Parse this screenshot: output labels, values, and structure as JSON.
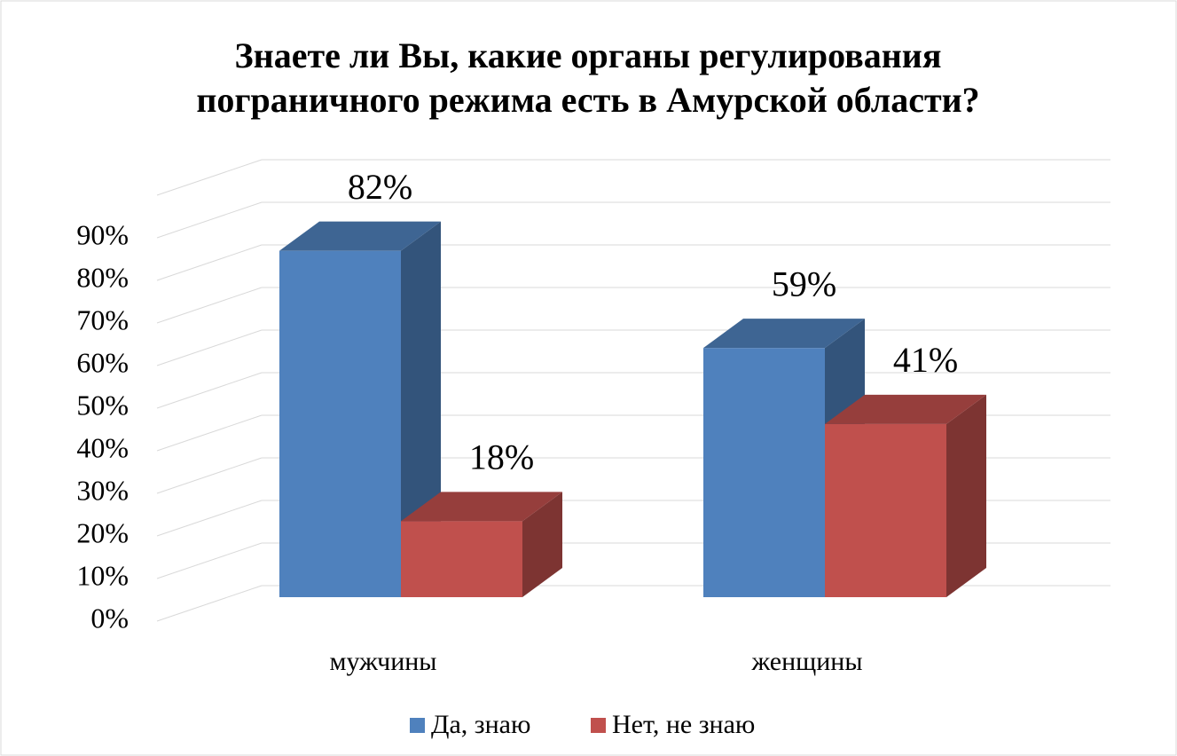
{
  "chart_data": {
    "type": "bar3d",
    "title": "Знаете ли Вы, какие органы регулирования пограничного режима есть в Амурской области?",
    "categories": [
      "мужчины",
      "женщины"
    ],
    "series": [
      {
        "name": "Да, знаю",
        "color": "#4f81bd",
        "values": [
          82,
          59
        ],
        "value_labels": [
          "82%",
          "59%"
        ]
      },
      {
        "name": "Нет, не знаю",
        "color": "#c0504d",
        "values": [
          18,
          41
        ],
        "value_labels": [
          "18%",
          "41%"
        ]
      }
    ],
    "ylim": [
      0,
      100
    ],
    "yticks": [
      {
        "value": 0,
        "label": "0%"
      },
      {
        "value": 10,
        "label": "10%"
      },
      {
        "value": 20,
        "label": "20%"
      },
      {
        "value": 30,
        "label": "30%"
      },
      {
        "value": 40,
        "label": "40%"
      },
      {
        "value": 50,
        "label": "50%"
      },
      {
        "value": 60,
        "label": "60%"
      },
      {
        "value": 70,
        "label": "70%"
      },
      {
        "value": 80,
        "label": "80%"
      },
      {
        "value": 90,
        "label": "90%"
      }
    ],
    "grid": true,
    "legend": "bottom"
  }
}
